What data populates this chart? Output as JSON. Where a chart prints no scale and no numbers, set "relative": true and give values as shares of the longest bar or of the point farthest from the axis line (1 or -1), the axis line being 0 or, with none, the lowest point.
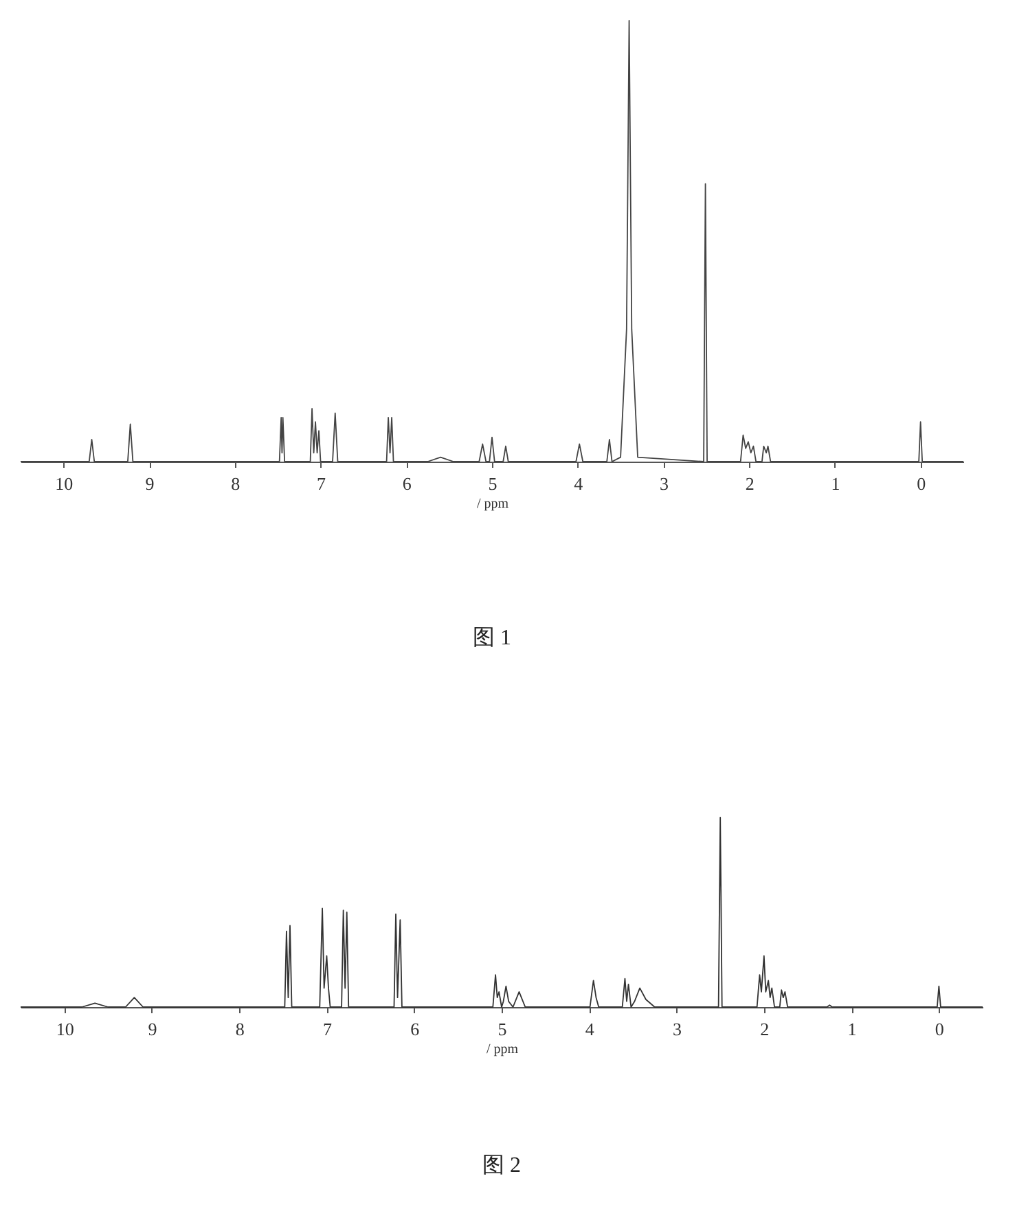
{
  "chart_data": [
    {
      "type": "line",
      "title": "图 1",
      "xlabel": "/ ppm",
      "relative": true,
      "xlim": [
        10.5,
        -0.5
      ],
      "xticks": [
        10,
        9,
        8,
        7,
        6,
        5,
        4,
        3,
        2,
        1,
        0
      ],
      "grid": false,
      "marker": "none",
      "line_style": "solid",
      "series": [
        {
          "color": "#444444",
          "x": [
            10.5,
            9.7,
            9.67,
            9.64,
            9.25,
            9.22,
            9.19,
            7.48,
            7.46,
            7.45,
            7.44,
            7.42,
            7.12,
            7.1,
            7.08,
            7.06,
            7.04,
            7.02,
            7.0,
            6.86,
            6.83,
            6.8,
            6.23,
            6.21,
            6.19,
            6.17,
            6.15,
            5.75,
            5.6,
            5.45,
            5.15,
            5.11,
            5.07,
            5.03,
            5.0,
            4.97,
            4.87,
            4.84,
            4.81,
            4.02,
            3.98,
            3.94,
            3.66,
            3.63,
            3.6,
            3.5,
            3.43,
            3.4,
            3.37,
            3.3,
            2.53,
            2.51,
            2.49,
            2.1,
            2.07,
            2.04,
            2.01,
            1.98,
            1.95,
            1.92,
            1.85,
            1.83,
            1.8,
            1.78,
            1.75,
            0.02,
            0,
            -0.02,
            -0.5
          ],
          "values": [
            0,
            0,
            0.05,
            0,
            0,
            0.085,
            0,
            0,
            0.1,
            0.02,
            0.1,
            0,
            0,
            0.12,
            0.02,
            0.09,
            0.02,
            0.07,
            0,
            0,
            0.11,
            0,
            0,
            0.1,
            0.02,
            0.1,
            0,
            0,
            0.01,
            0,
            0,
            0.04,
            0,
            0,
            0.055,
            0,
            0,
            0.035,
            0,
            0,
            0.04,
            0,
            0,
            0.05,
            0,
            0.01,
            0.3,
            1.0,
            0.3,
            0.01,
            0,
            0.63,
            0,
            0,
            0.06,
            0.03,
            0.045,
            0.02,
            0.035,
            0,
            0,
            0.035,
            0.02,
            0.035,
            0,
            0,
            0.09,
            0,
            0
          ]
        }
      ]
    },
    {
      "type": "line",
      "title": "图 2",
      "xlabel": "/ ppm",
      "relative": true,
      "xlim": [
        10.5,
        -0.5
      ],
      "xticks": [
        10,
        9,
        8,
        7,
        6,
        5,
        4,
        3,
        2,
        1,
        0
      ],
      "grid": false,
      "marker": "none",
      "line_style": "solid",
      "series": [
        {
          "color": "#333333",
          "x": [
            10.5,
            9.8,
            9.65,
            9.5,
            9.3,
            9.2,
            9.1,
            7.48,
            7.46,
            7.44,
            7.42,
            7.4,
            7.08,
            7.05,
            7.03,
            7.0,
            6.98,
            6.96,
            6.83,
            6.81,
            6.79,
            6.77,
            6.75,
            6.23,
            6.21,
            6.19,
            6.16,
            6.14,
            5.1,
            5.07,
            5.05,
            5.03,
            5.0,
            4.98,
            4.95,
            4.92,
            4.87,
            4.8,
            4.73,
            3.99,
            3.95,
            3.92,
            3.89,
            3.62,
            3.59,
            3.57,
            3.55,
            3.52,
            3.48,
            3.42,
            3.35,
            3.25,
            2.52,
            2.5,
            2.48,
            2.08,
            2.05,
            2.03,
            2.0,
            1.98,
            1.95,
            1.93,
            1.91,
            1.88,
            1.82,
            1.8,
            1.78,
            1.76,
            1.73,
            1.28,
            1.25,
            1.22,
            0.02,
            0,
            -0.02,
            -0.5
          ],
          "values": [
            0,
            0,
            0.02,
            0,
            0,
            0.05,
            0,
            0,
            0.4,
            0.05,
            0.43,
            0,
            0,
            0.52,
            0.1,
            0.27,
            0.1,
            0,
            0,
            0.51,
            0.1,
            0.5,
            0,
            0,
            0.49,
            0.05,
            0.46,
            0,
            0,
            0.17,
            0.05,
            0.08,
            0,
            0.03,
            0.11,
            0.03,
            0,
            0.08,
            0,
            0,
            0.14,
            0.05,
            0,
            0,
            0.15,
            0.03,
            0.12,
            0,
            0.03,
            0.1,
            0.04,
            0,
            0,
            1.0,
            0,
            0,
            0.17,
            0.08,
            0.27,
            0.08,
            0.14,
            0.05,
            0.1,
            0,
            0,
            0.09,
            0.05,
            0.08,
            0,
            0,
            0.01,
            0,
            0,
            0.11,
            0,
            0
          ]
        }
      ]
    }
  ]
}
